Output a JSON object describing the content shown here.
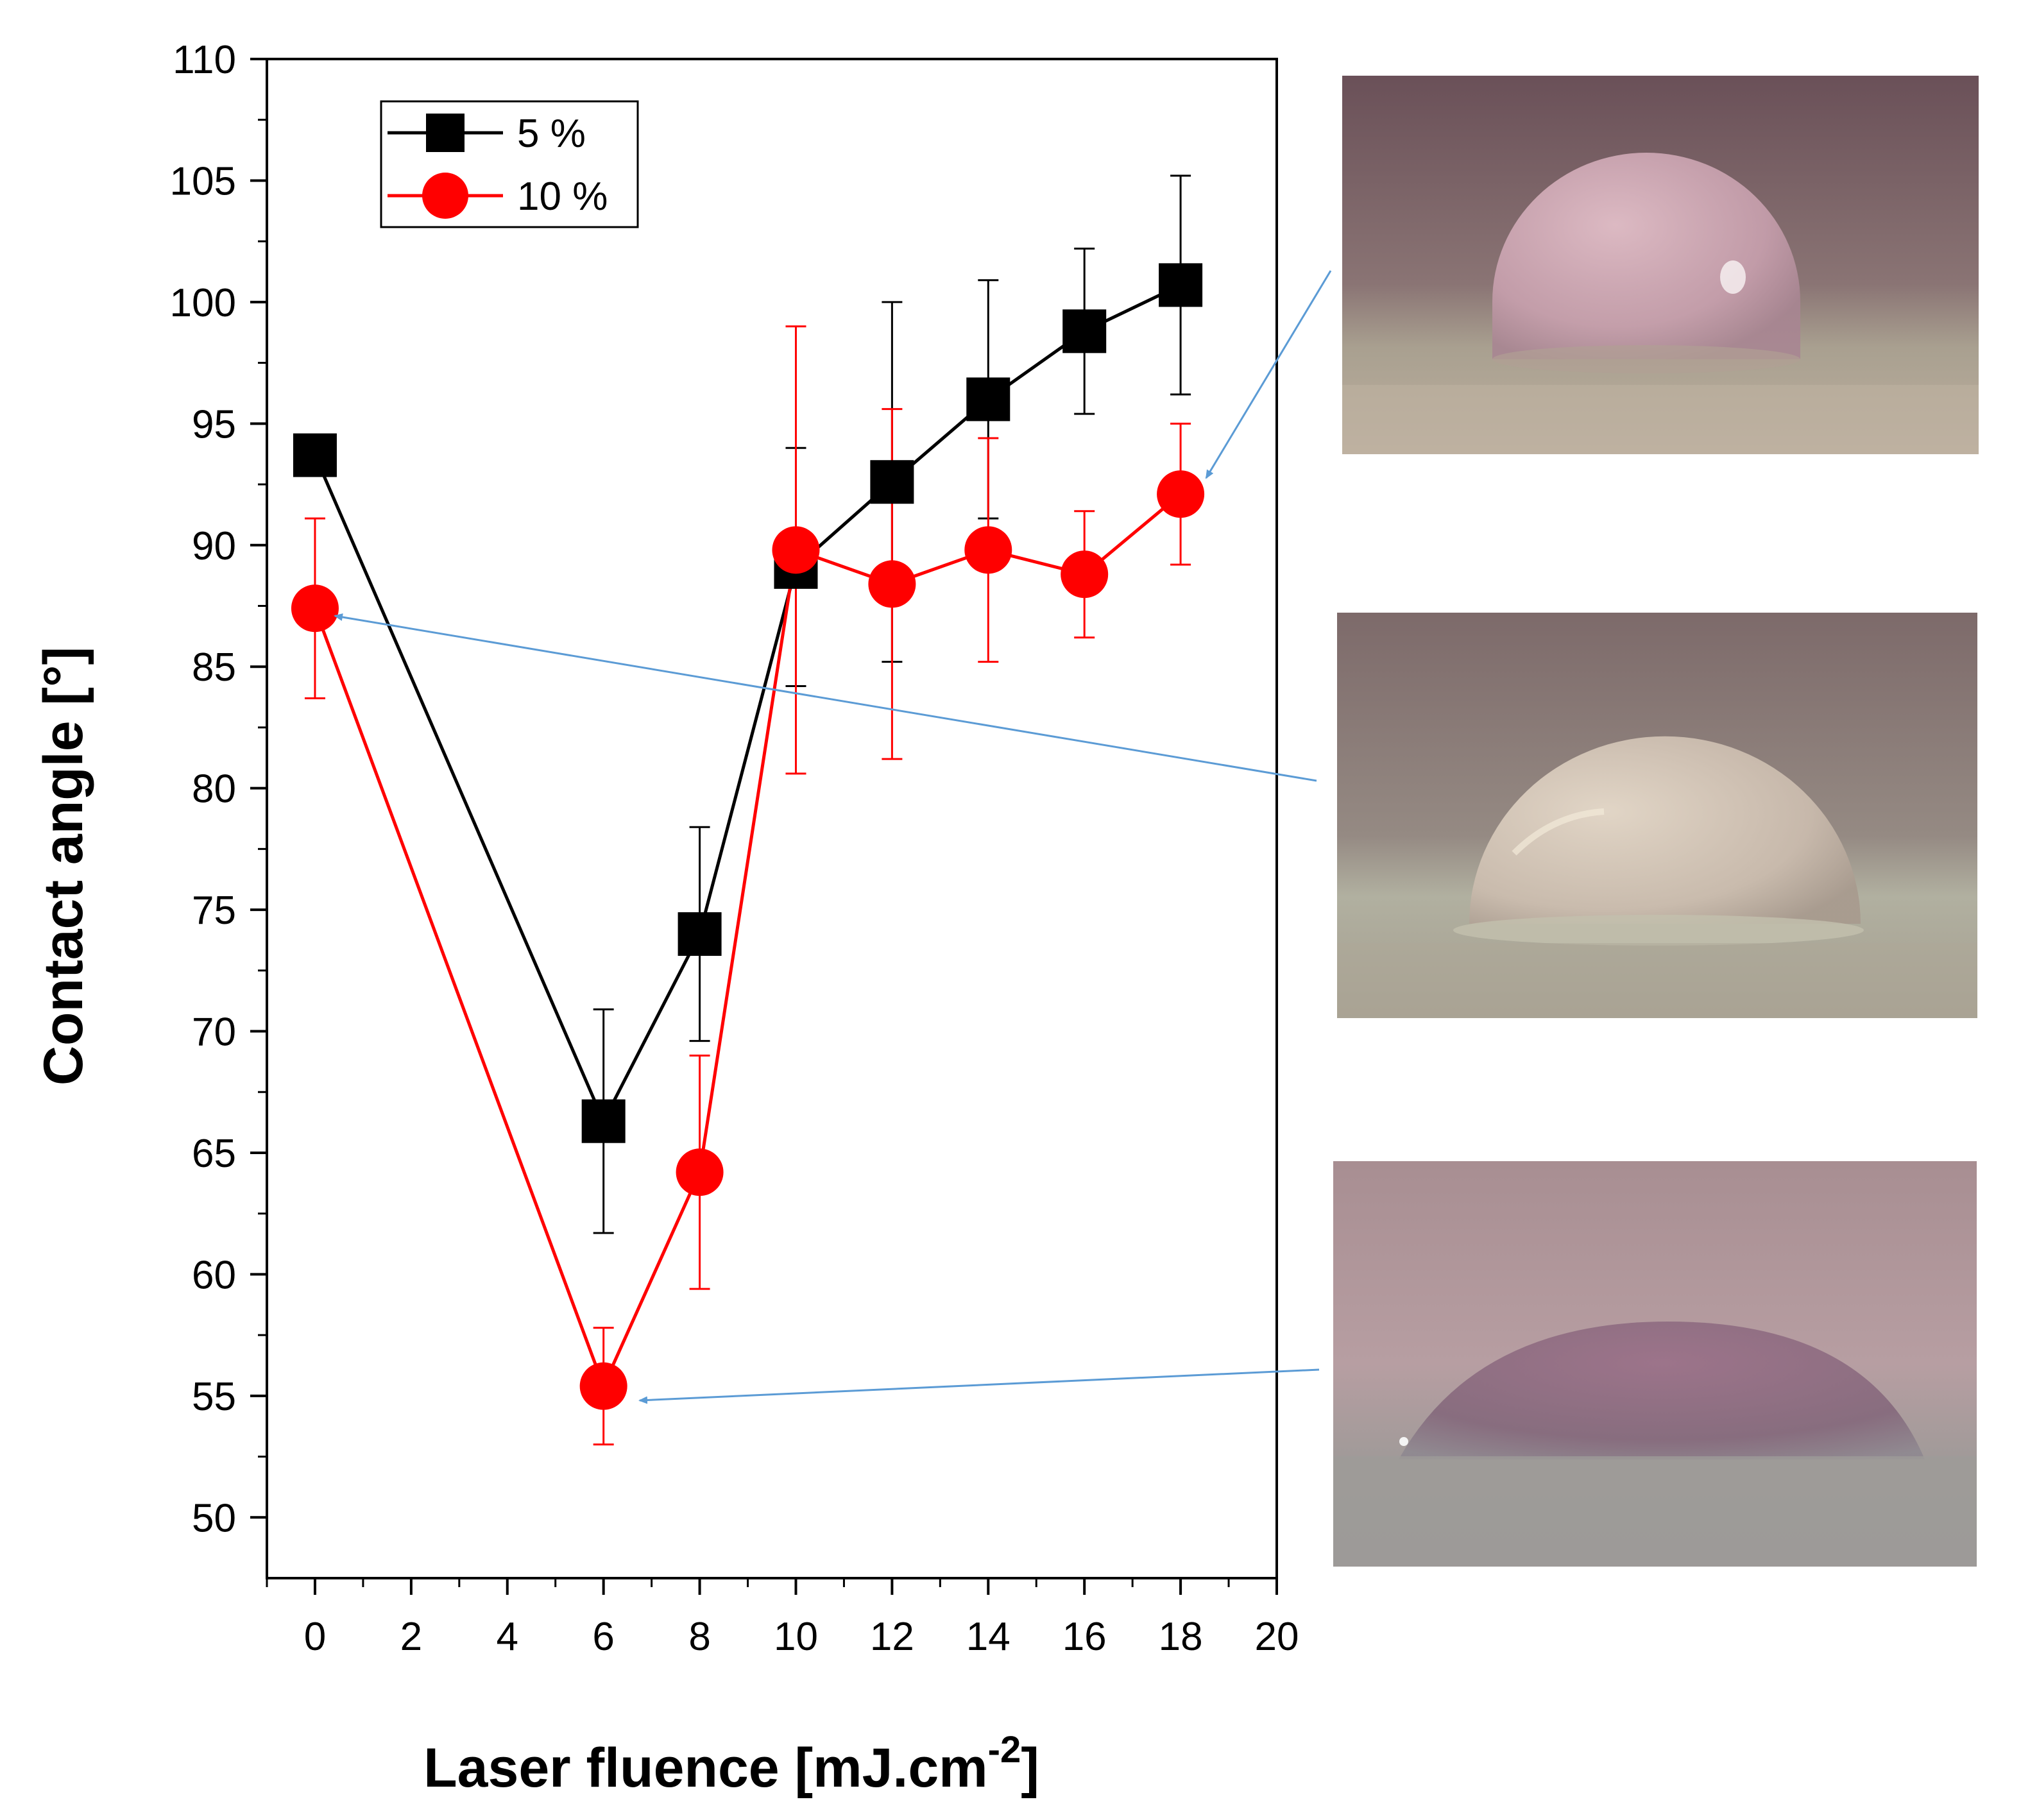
{
  "chart_data": {
    "type": "line",
    "xlabel": "Laser fluence [mJ.cm",
    "xlabel_sup": "-2",
    "xlabel_end": "]",
    "ylabel": "Contact angle [°]",
    "xlim": [
      -1,
      20
    ],
    "ylim": [
      47.5,
      110
    ],
    "x_ticks": [
      "0",
      "2",
      "4",
      "6",
      "8",
      "10",
      "12",
      "14",
      "16",
      "18",
      "20"
    ],
    "y_ticks": [
      "50",
      "55",
      "60",
      "65",
      "70",
      "75",
      "80",
      "85",
      "90",
      "95",
      "100",
      "105",
      "110"
    ],
    "legend_position": "top-left",
    "series": [
      {
        "name": "5 %",
        "marker": "square",
        "color": "#000000",
        "x": [
          0,
          6,
          8,
          10,
          12,
          14,
          16,
          18
        ],
        "y": [
          93.7,
          66.3,
          74.0,
          89.1,
          92.6,
          96.0,
          98.8,
          100.7
        ],
        "err": [
          0.0,
          4.6,
          4.4,
          4.9,
          7.4,
          4.9,
          3.4,
          4.5
        ]
      },
      {
        "name": "10 %",
        "marker": "circle",
        "color": "#ff0000",
        "x": [
          0,
          6,
          8,
          10,
          12,
          14,
          16,
          18
        ],
        "y": [
          87.4,
          55.4,
          64.2,
          89.8,
          88.4,
          89.8,
          88.8,
          92.1
        ],
        "err": [
          3.7,
          2.4,
          4.8,
          9.2,
          7.2,
          4.6,
          2.6,
          2.9
        ]
      }
    ]
  },
  "images": [
    {
      "name": "droplet-photo-high"
    },
    {
      "name": "droplet-photo-mid"
    },
    {
      "name": "droplet-photo-low"
    }
  ],
  "arrow_color": "#5b9bd5"
}
